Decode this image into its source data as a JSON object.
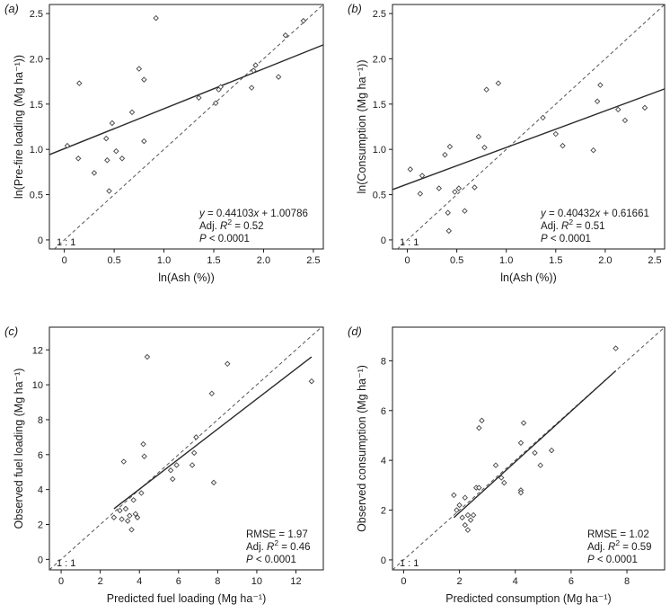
{
  "chart_data": [
    {
      "type": "scatter",
      "panel_label": "(a)",
      "xlabel": "ln(Ash (%))",
      "ylabel": "ln(Pre-fire loading (Mg ha⁻¹))",
      "xlim": [
        -0.15,
        2.6
      ],
      "ylim": [
        -0.1,
        2.6
      ],
      "xticks": [
        0,
        0.5,
        1.0,
        1.5,
        2.0,
        2.5
      ],
      "xtick_labels": [
        "0",
        "0.5",
        "1.0",
        "1.5",
        "2.0",
        "2.5"
      ],
      "yticks": [
        0,
        0.5,
        1.0,
        1.5,
        2.0,
        2.5
      ],
      "ytick_labels": [
        "0",
        "0.5",
        "1.0",
        "1.5",
        "2.0",
        "2.5"
      ],
      "points": {
        "x": [
          0.03,
          0.14,
          0.15,
          0.3,
          0.42,
          0.43,
          0.45,
          0.48,
          0.52,
          0.58,
          0.68,
          0.75,
          0.8,
          0.8,
          0.92,
          1.35,
          1.52,
          1.55,
          1.57,
          1.88,
          1.9,
          1.92,
          2.15,
          2.22,
          2.4
        ],
        "y": [
          1.04,
          0.9,
          1.73,
          0.74,
          1.12,
          0.88,
          0.54,
          1.29,
          0.98,
          0.9,
          1.41,
          1.89,
          1.77,
          1.09,
          2.45,
          1.57,
          1.51,
          1.66,
          1.69,
          1.68,
          1.87,
          1.93,
          1.8,
          2.26,
          2.42
        ]
      },
      "fit": {
        "slope": 0.44103,
        "intercept": 1.00786
      },
      "annotation": {
        "eq_prefix": "y",
        "eq_text": " = 0.44103",
        "eq_var": "x",
        "eq_tail": " + 1.00786",
        "r2_prefix": "Adj. ",
        "r2_var": "R",
        "r2_sup": "2",
        "r2_val": " = 0.52",
        "p_var": "P",
        "p_val": " < 0.0001"
      },
      "identity_label": "1 : 1"
    },
    {
      "type": "scatter",
      "panel_label": "(b)",
      "xlabel": "ln(Ash (%))",
      "ylabel": "ln(Consumption (Mg ha⁻¹))",
      "xlim": [
        -0.15,
        2.6
      ],
      "ylim": [
        -0.1,
        2.6
      ],
      "xticks": [
        0,
        0.5,
        1.0,
        1.5,
        2.0,
        2.5
      ],
      "xtick_labels": [
        "0",
        "0.5",
        "1.0",
        "1.5",
        "2.0",
        "2.5"
      ],
      "yticks": [
        0,
        0.5,
        1.0,
        1.5,
        2.0,
        2.5
      ],
      "ytick_labels": [
        "0",
        "0.5",
        "1.0",
        "1.5",
        "2.0",
        "2.5"
      ],
      "points": {
        "x": [
          0.03,
          0.13,
          0.15,
          0.32,
          0.38,
          0.41,
          0.42,
          0.43,
          0.48,
          0.52,
          0.58,
          0.68,
          0.72,
          0.78,
          0.8,
          0.92,
          1.37,
          1.5,
          1.57,
          1.88,
          1.92,
          1.95,
          2.13,
          2.2,
          2.4
        ],
        "y": [
          0.78,
          0.51,
          0.71,
          0.57,
          0.94,
          0.3,
          0.1,
          1.03,
          0.53,
          0.57,
          0.32,
          0.58,
          1.14,
          1.02,
          1.66,
          1.73,
          1.35,
          1.17,
          1.04,
          0.99,
          1.53,
          1.71,
          1.44,
          1.32,
          1.46
        ]
      },
      "fit": {
        "slope": 0.40432,
        "intercept": 0.61661
      },
      "annotation": {
        "eq_prefix": "y",
        "eq_text": " = 0.40432",
        "eq_var": "x",
        "eq_tail": " + 0.61661",
        "r2_prefix": "Adj. ",
        "r2_var": "R",
        "r2_sup": "2",
        "r2_val": " = 0.51",
        "p_var": "P",
        "p_val": " < 0.0001"
      },
      "identity_label": "1 : 1"
    },
    {
      "type": "scatter",
      "panel_label": "(c)",
      "xlabel": "Predicted fuel loading (Mg ha⁻¹)",
      "ylabel": "Observed fuel loading (Mg ha⁻¹)",
      "xlim": [
        -0.6,
        13.4
      ],
      "ylim": [
        -0.6,
        13.3
      ],
      "xticks": [
        0,
        2,
        4,
        6,
        8,
        10,
        12
      ],
      "xtick_labels": [
        "0",
        "2",
        "4",
        "6",
        "8",
        "10",
        "12"
      ],
      "yticks": [
        0,
        2,
        4,
        6,
        8,
        10,
        12
      ],
      "ytick_labels": [
        "0",
        "2",
        "4",
        "6",
        "8",
        "10",
        "12"
      ],
      "points": {
        "x": [
          2.7,
          3.0,
          3.1,
          3.3,
          3.4,
          3.5,
          3.6,
          3.7,
          3.8,
          3.9,
          4.1,
          4.2,
          4.25,
          4.4,
          3.2,
          5.7,
          5.9,
          5.6,
          6.7,
          6.8,
          6.9,
          7.7,
          7.8,
          8.5,
          12.8
        ],
        "y": [
          2.4,
          2.8,
          2.3,
          2.9,
          2.2,
          2.5,
          1.7,
          3.4,
          2.6,
          2.4,
          3.8,
          6.6,
          5.9,
          11.6,
          5.6,
          4.6,
          5.4,
          5.1,
          5.4,
          6.1,
          7.0,
          9.5,
          4.4,
          11.2,
          10.2
        ]
      },
      "fit_segment": {
        "x": [
          2.7,
          12.8
        ],
        "y": [
          2.9,
          11.6
        ]
      },
      "annotation": {
        "rmse_text": "RMSE = 1.97",
        "r2_prefix": "Adj. ",
        "r2_var": "R",
        "r2_sup": "2",
        "r2_val": " = 0.46",
        "p_var": "P",
        "p_val": " < 0.0001"
      },
      "identity_label": "1 : 1"
    },
    {
      "type": "scatter",
      "panel_label": "(d)",
      "xlabel": "Predicted consumption (Mg ha⁻¹)",
      "ylabel": "Observed consumption (Mg ha⁻¹)",
      "xlim": [
        -0.4,
        9.35
      ],
      "ylim": [
        -0.4,
        9.35
      ],
      "xticks": [
        0,
        2,
        4,
        6,
        8
      ],
      "xtick_labels": [
        "0",
        "2",
        "4",
        "6",
        "8"
      ],
      "yticks": [
        0,
        2,
        4,
        6,
        8
      ],
      "ytick_labels": [
        "0",
        "2",
        "4",
        "6",
        "8"
      ],
      "points": {
        "x": [
          1.8,
          1.9,
          2.0,
          2.1,
          2.2,
          2.3,
          2.3,
          2.4,
          2.5,
          2.6,
          2.2,
          2.7,
          2.8,
          2.7,
          3.3,
          3.5,
          3.6,
          4.2,
          4.2,
          4.3,
          4.7,
          4.9,
          5.3,
          4.2,
          7.6
        ],
        "y": [
          2.6,
          2.0,
          2.2,
          1.7,
          1.4,
          1.8,
          1.2,
          1.6,
          1.8,
          2.9,
          2.5,
          2.9,
          5.6,
          5.3,
          3.8,
          3.3,
          3.1,
          2.8,
          4.7,
          5.5,
          4.3,
          3.8,
          4.4,
          2.7,
          8.5
        ]
      },
      "fit_segment": {
        "x": [
          1.8,
          7.6
        ],
        "y": [
          1.7,
          7.6
        ]
      },
      "annotation": {
        "rmse_text": "RMSE = 1.02",
        "r2_prefix": "Adj. ",
        "r2_var": "R",
        "r2_sup": "2",
        "r2_val": " = 0.59",
        "p_var": "P",
        "p_val": " < 0.0001"
      },
      "identity_label": "1 : 1"
    }
  ],
  "colors": {
    "axis": "#1a1a1a",
    "fit_line": "#2b2b2b",
    "identity_line": "#555555",
    "marker": "#444444",
    "background": "#ffffff"
  }
}
